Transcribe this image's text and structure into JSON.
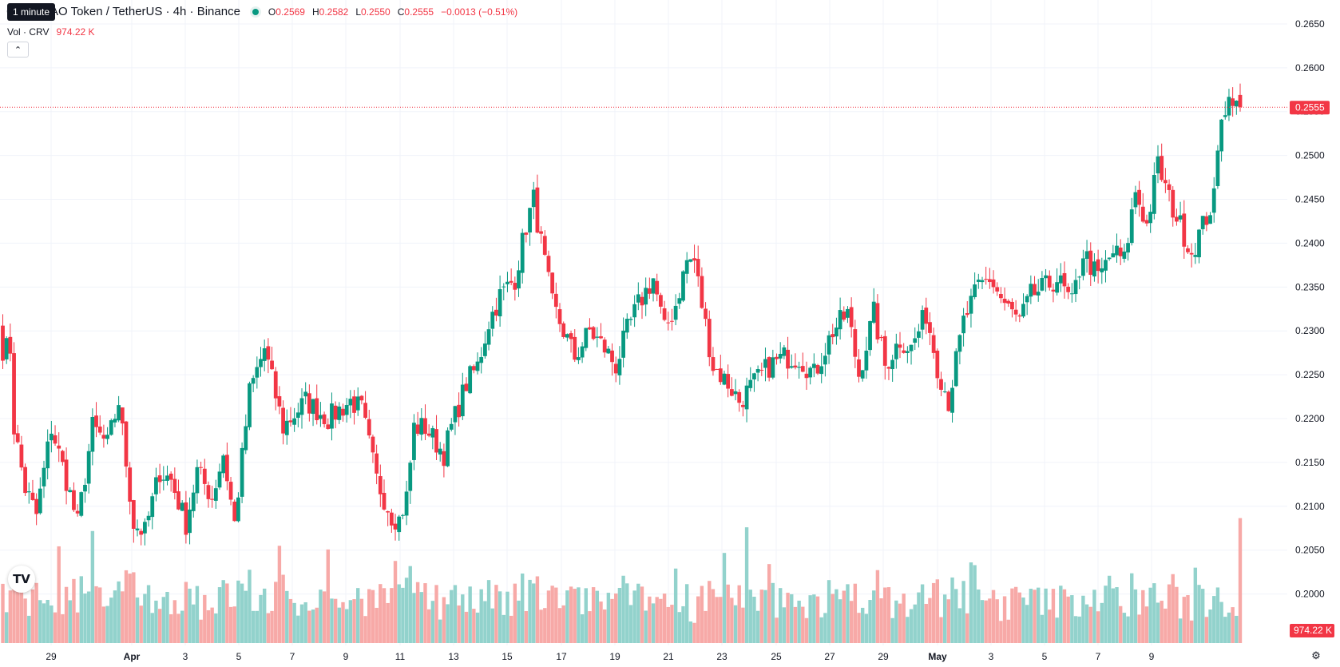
{
  "header": {
    "tooltip": "1 minute",
    "symbol": "Curve DAO Token / TetherUS · 4h · Binance",
    "ohlc": [
      {
        "key": "O",
        "value": "0.2569"
      },
      {
        "key": "H",
        "value": "0.2582"
      },
      {
        "key": "L",
        "value": "0.2550"
      },
      {
        "key": "C",
        "value": "0.2555"
      }
    ],
    "change": "−0.0013 (−0.51%)"
  },
  "volume_legend": {
    "label": "Vol · CRV",
    "value": "974.22 K"
  },
  "logo_text": "TV",
  "icons": {
    "settings": "gear-icon",
    "collapse": "chevron-up-icon"
  },
  "colors": {
    "up": "#089981",
    "down": "#f23645",
    "up_volume": "#92d2cc",
    "down_volume": "#f7a9a7",
    "grid": "#f0f3fa",
    "text": "#131722"
  },
  "chart_data": {
    "type": "candlestick",
    "symbol": "CRV/USDT",
    "interval": "4h",
    "exchange": "Binance",
    "y_axis": {
      "range": [
        0.1955,
        0.267
      ],
      "ticks": [
        "0.2650",
        "0.2600",
        "0.2550",
        "0.2500",
        "0.2450",
        "0.2400",
        "0.2350",
        "0.2300",
        "0.2250",
        "0.2200",
        "0.2150",
        "0.2100",
        "0.2050",
        "0.2000"
      ]
    },
    "x_axis": {
      "ticks": [
        "29",
        "Apr",
        "3",
        "5",
        "7",
        "9",
        "11",
        "13",
        "15",
        "17",
        "19",
        "21",
        "23",
        "25",
        "27",
        "29",
        "May",
        "3",
        "5",
        "7",
        "9"
      ],
      "bold_ticks": [
        "Apr",
        "May"
      ]
    },
    "last_price": "0.2555",
    "last_volume": "974.22 K",
    "waypoints": [
      [
        0,
        0.228
      ],
      [
        2,
        0.228
      ],
      [
        3,
        0.219
      ],
      [
        6,
        0.212
      ],
      [
        9,
        0.209
      ],
      [
        13,
        0.219
      ],
      [
        17,
        0.213
      ],
      [
        20,
        0.208
      ],
      [
        24,
        0.219
      ],
      [
        28,
        0.217
      ],
      [
        31,
        0.222
      ],
      [
        35,
        0.208
      ],
      [
        38,
        0.207
      ],
      [
        42,
        0.214
      ],
      [
        45,
        0.213
      ],
      [
        49,
        0.208
      ],
      [
        52,
        0.214
      ],
      [
        56,
        0.211
      ],
      [
        59,
        0.216
      ],
      [
        62,
        0.208
      ],
      [
        66,
        0.223
      ],
      [
        70,
        0.228
      ],
      [
        75,
        0.219
      ],
      [
        81,
        0.222
      ],
      [
        87,
        0.22
      ],
      [
        93,
        0.222
      ],
      [
        96,
        0.221
      ],
      [
        100,
        0.213
      ],
      [
        104,
        0.209
      ],
      [
        106,
        0.2085
      ],
      [
        108,
        0.211
      ],
      [
        110,
        0.219
      ],
      [
        113,
        0.219
      ],
      [
        118,
        0.216
      ],
      [
        120,
        0.219
      ],
      [
        124,
        0.224
      ],
      [
        127,
        0.226
      ],
      [
        130,
        0.231
      ],
      [
        133,
        0.234
      ],
      [
        137,
        0.236
      ],
      [
        140,
        0.242
      ],
      [
        142,
        0.245
      ],
      [
        144,
        0.24
      ],
      [
        147,
        0.233
      ],
      [
        150,
        0.23
      ],
      [
        153,
        0.227
      ],
      [
        157,
        0.23
      ],
      [
        161,
        0.228
      ],
      [
        164,
        0.226
      ],
      [
        167,
        0.23
      ],
      [
        170,
        0.233
      ],
      [
        174,
        0.236
      ],
      [
        177,
        0.23
      ],
      [
        180,
        0.233
      ],
      [
        183,
        0.238
      ],
      [
        185,
        0.238
      ],
      [
        187,
        0.233
      ],
      [
        190,
        0.226
      ],
      [
        194,
        0.224
      ],
      [
        197,
        0.222
      ],
      [
        201,
        0.224
      ],
      [
        205,
        0.226
      ],
      [
        209,
        0.227
      ],
      [
        213,
        0.227
      ],
      [
        217,
        0.225
      ],
      [
        222,
        0.23
      ],
      [
        226,
        0.232
      ],
      [
        229,
        0.225
      ],
      [
        233,
        0.232
      ],
      [
        236,
        0.226
      ],
      [
        240,
        0.229
      ],
      [
        243,
        0.228
      ],
      [
        247,
        0.232
      ],
      [
        250,
        0.226
      ],
      [
        253,
        0.222
      ],
      [
        257,
        0.231
      ],
      [
        261,
        0.235
      ],
      [
        264,
        0.236
      ],
      [
        268,
        0.233
      ],
      [
        272,
        0.231
      ],
      [
        275,
        0.234
      ],
      [
        279,
        0.235
      ],
      [
        282,
        0.236
      ],
      [
        286,
        0.233
      ],
      [
        289,
        0.239
      ],
      [
        293,
        0.236
      ],
      [
        297,
        0.239
      ],
      [
        300,
        0.238
      ],
      [
        303,
        0.246
      ],
      [
        306,
        0.242
      ],
      [
        309,
        0.249
      ],
      [
        312,
        0.245
      ],
      [
        315,
        0.242
      ],
      [
        318,
        0.239
      ],
      [
        321,
        0.242
      ],
      [
        324,
        0.245
      ],
      [
        326,
        0.255
      ],
      [
        329,
        0.257
      ],
      [
        331,
        0.2555
      ]
    ],
    "volume_range_k": [
      0,
      1800
    ]
  }
}
